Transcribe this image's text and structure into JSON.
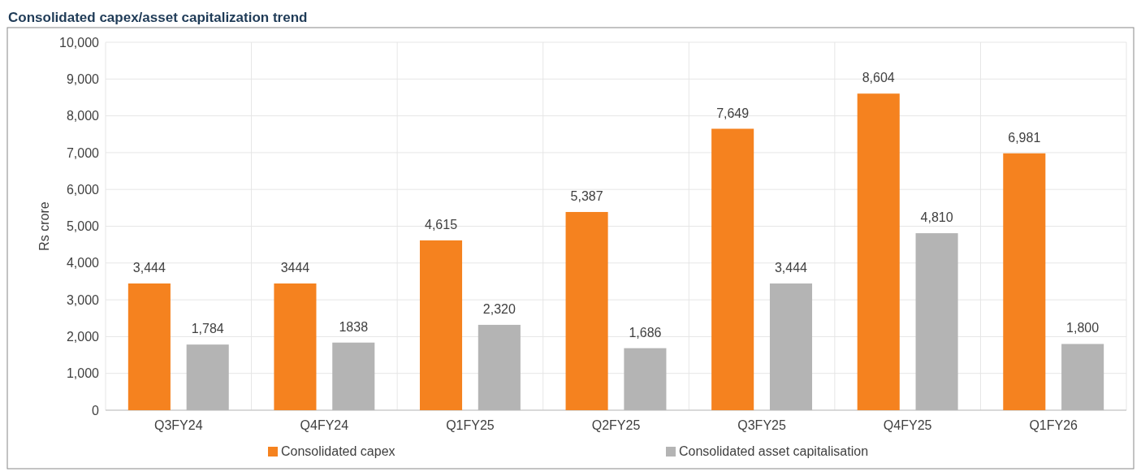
{
  "chart_data": {
    "type": "bar",
    "title": "Consolidated capex/asset capitalization trend",
    "ylabel": "Rs crore",
    "categories": [
      "Q3FY24",
      "Q4FY24",
      "Q1FY25",
      "Q2FY25",
      "Q3FY25",
      "Q4FY25",
      "Q1FY26"
    ],
    "series": [
      {
        "name": "Consolidated capex",
        "color": "#f5821f",
        "values": [
          3444,
          3444,
          4615,
          5387,
          7649,
          8604,
          6981
        ],
        "value_labels": [
          "3,444",
          "3444",
          "4,615",
          "5,387",
          "7,649",
          "8,604",
          "6,981"
        ]
      },
      {
        "name": "Consolidated asset capitalisation",
        "color": "#b4b4b4",
        "values": [
          1784,
          1838,
          2320,
          1686,
          3444,
          4810,
          1800
        ],
        "value_labels": [
          "1,784",
          "1838",
          "2,320",
          "1,686",
          "3,444",
          "4,810",
          "1,800"
        ]
      }
    ],
    "ylim": [
      0,
      10000
    ],
    "yticks": [
      {
        "value": 0,
        "label": "0"
      },
      {
        "value": 1000,
        "label": "1,000"
      },
      {
        "value": 2000,
        "label": "2,000"
      },
      {
        "value": 3000,
        "label": "3,000"
      },
      {
        "value": 4000,
        "label": "4,000"
      },
      {
        "value": 5000,
        "label": "5,000"
      },
      {
        "value": 6000,
        "label": "6,000"
      },
      {
        "value": 7000,
        "label": "7,000"
      },
      {
        "value": 8000,
        "label": "8,000"
      },
      {
        "value": 9000,
        "label": "9,000"
      },
      {
        "value": 10000,
        "label": "10,000"
      }
    ],
    "grid": true,
    "legend": "bottom"
  }
}
